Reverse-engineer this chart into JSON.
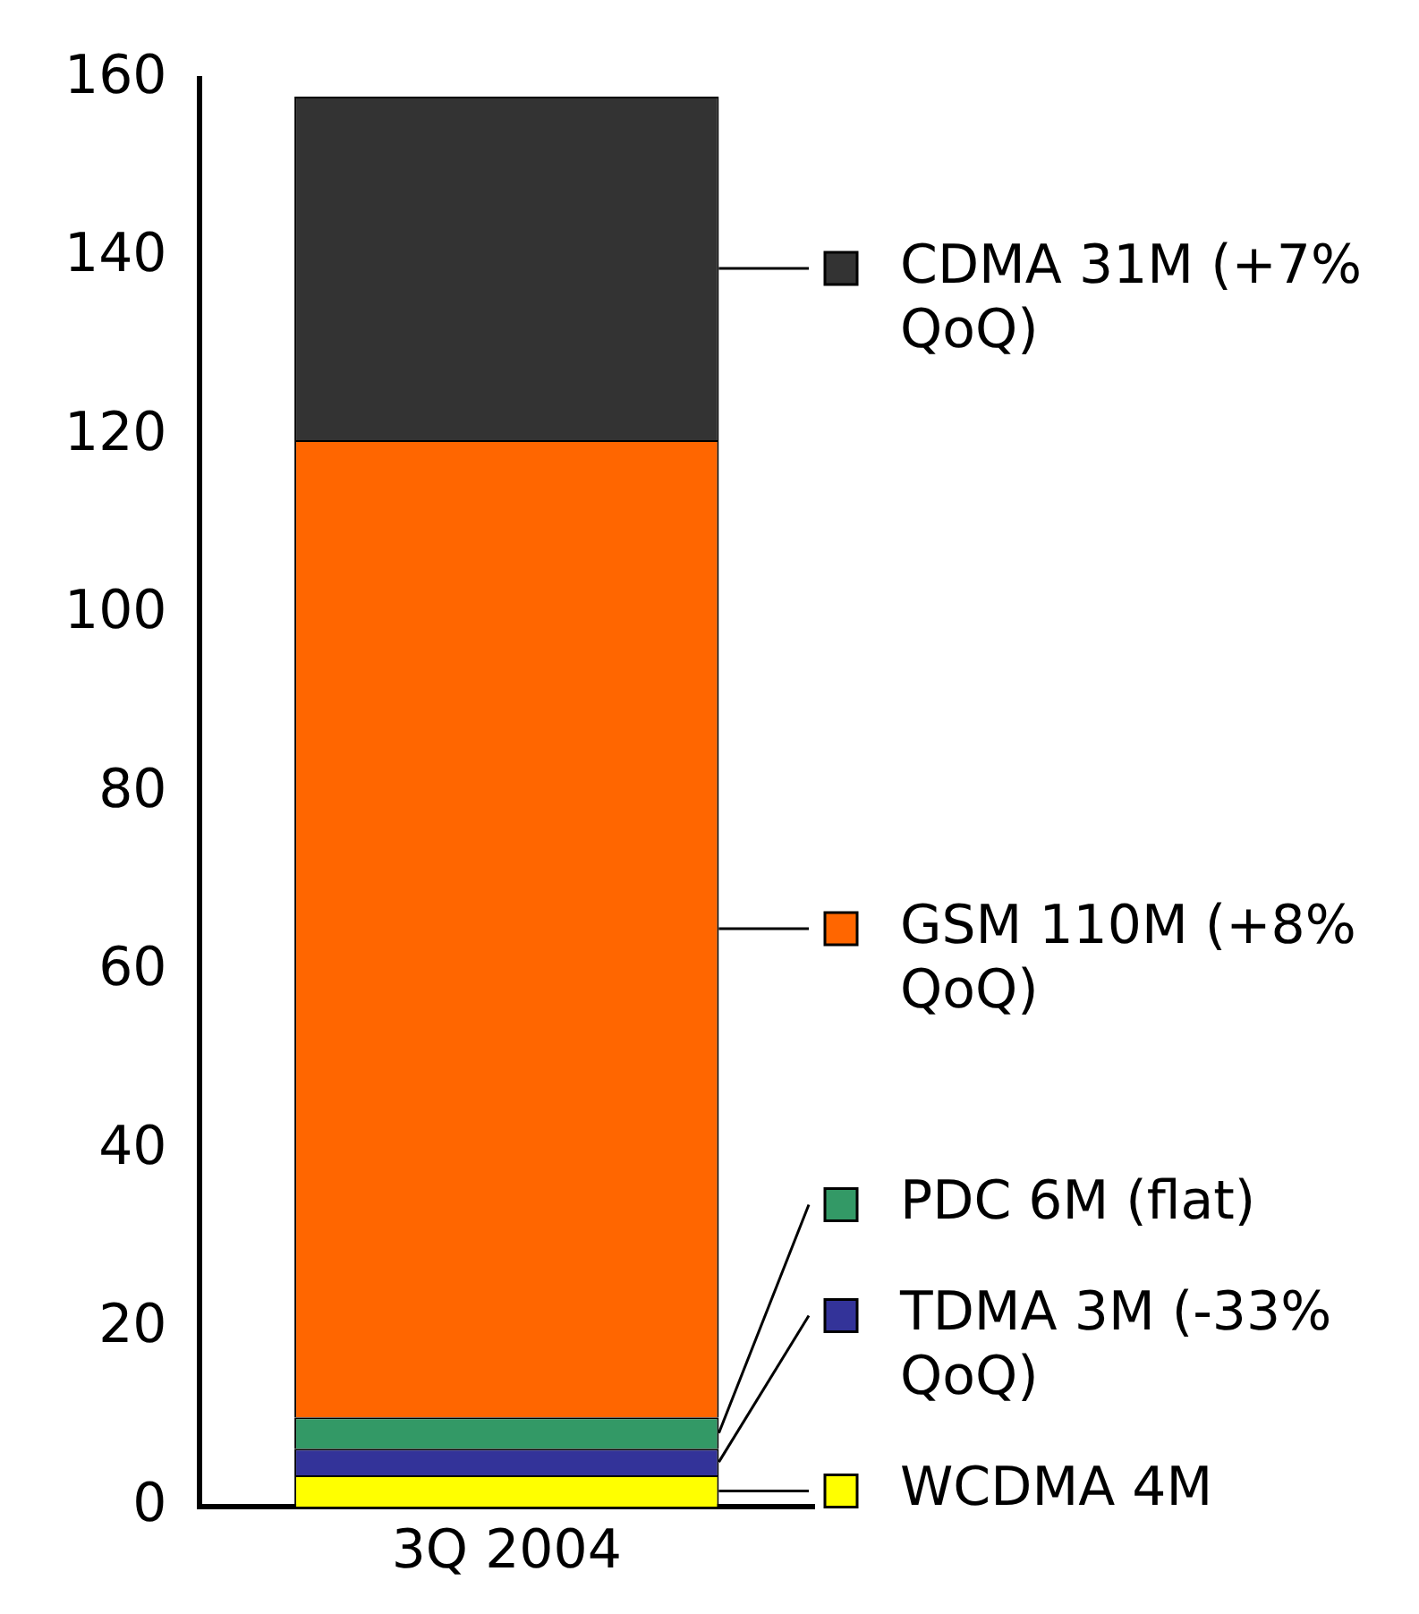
{
  "chart_data": {
    "type": "bar",
    "stacked": true,
    "categories": [
      "3Q 2004"
    ],
    "series": [
      {
        "name": "WCDMA 4M",
        "color": "#ffff00",
        "values": [
          3.5
        ]
      },
      {
        "name": "TDMA 3M (-33% QoQ)",
        "color": "#333399",
        "values": [
          3
        ]
      },
      {
        "name": "PDC 6M (flat)",
        "color": "#339966",
        "values": [
          3.5
        ]
      },
      {
        "name": "GSM 110M (+8% QoQ)",
        "color": "#ff6600",
        "values": [
          109.5
        ]
      },
      {
        "name": "CDMA 31M (+7% QoQ)",
        "color": "#333333",
        "values": [
          38.5
        ]
      }
    ],
    "ylim": [
      0,
      160
    ],
    "yticks": [
      0,
      20,
      40,
      60,
      80,
      100,
      120,
      140,
      160
    ],
    "grid": false,
    "legend": "right"
  }
}
